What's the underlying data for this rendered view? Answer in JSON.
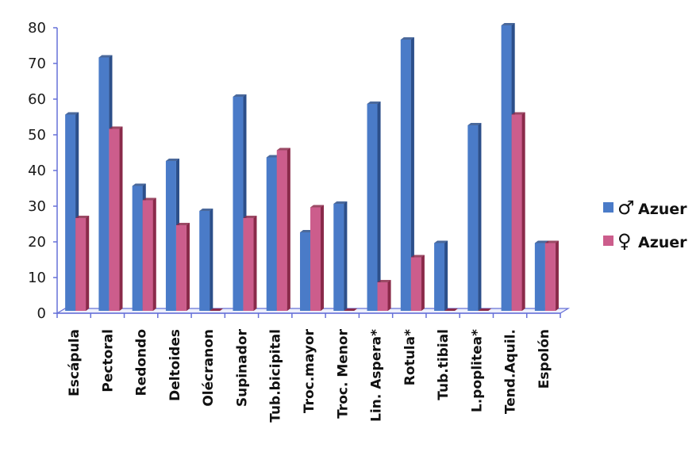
{
  "chart_data": {
    "type": "bar",
    "title": "",
    "xlabel": "",
    "ylabel": "",
    "ylim": [
      0,
      80
    ],
    "yticks": [
      0,
      10,
      20,
      30,
      40,
      50,
      60,
      70,
      80
    ],
    "grid": false,
    "legend_position": "right",
    "style": "3d-clustered-column",
    "categories": [
      "Escápula",
      "Pectoral",
      "Redondo",
      "Deltoides",
      "Olécranon",
      "Supinador",
      "Tub.bicipital",
      "Troc.mayor",
      "Troc. Menor",
      "Lin. Aspera*",
      "Rotula*",
      "Tub.tibial",
      "L.poplitea*",
      "Tend.Aquil.",
      "Espolón"
    ],
    "series": [
      {
        "name": "♂ Azuer",
        "symbol": "♂",
        "label": "Azuer",
        "color": "#4a7bc8",
        "side_color": "#2c4f8a",
        "values": [
          55,
          71,
          35,
          42,
          28,
          60,
          43,
          22,
          30,
          58,
          76,
          19,
          52,
          80,
          19
        ]
      },
      {
        "name": "♀ Azuer",
        "symbol": "♀",
        "label": "Azuer",
        "color": "#cc5d8c",
        "side_color": "#8a2a4a",
        "values": [
          26,
          51,
          31,
          24,
          0,
          26,
          45,
          29,
          0,
          8,
          15,
          0,
          0,
          55,
          19
        ]
      }
    ]
  }
}
